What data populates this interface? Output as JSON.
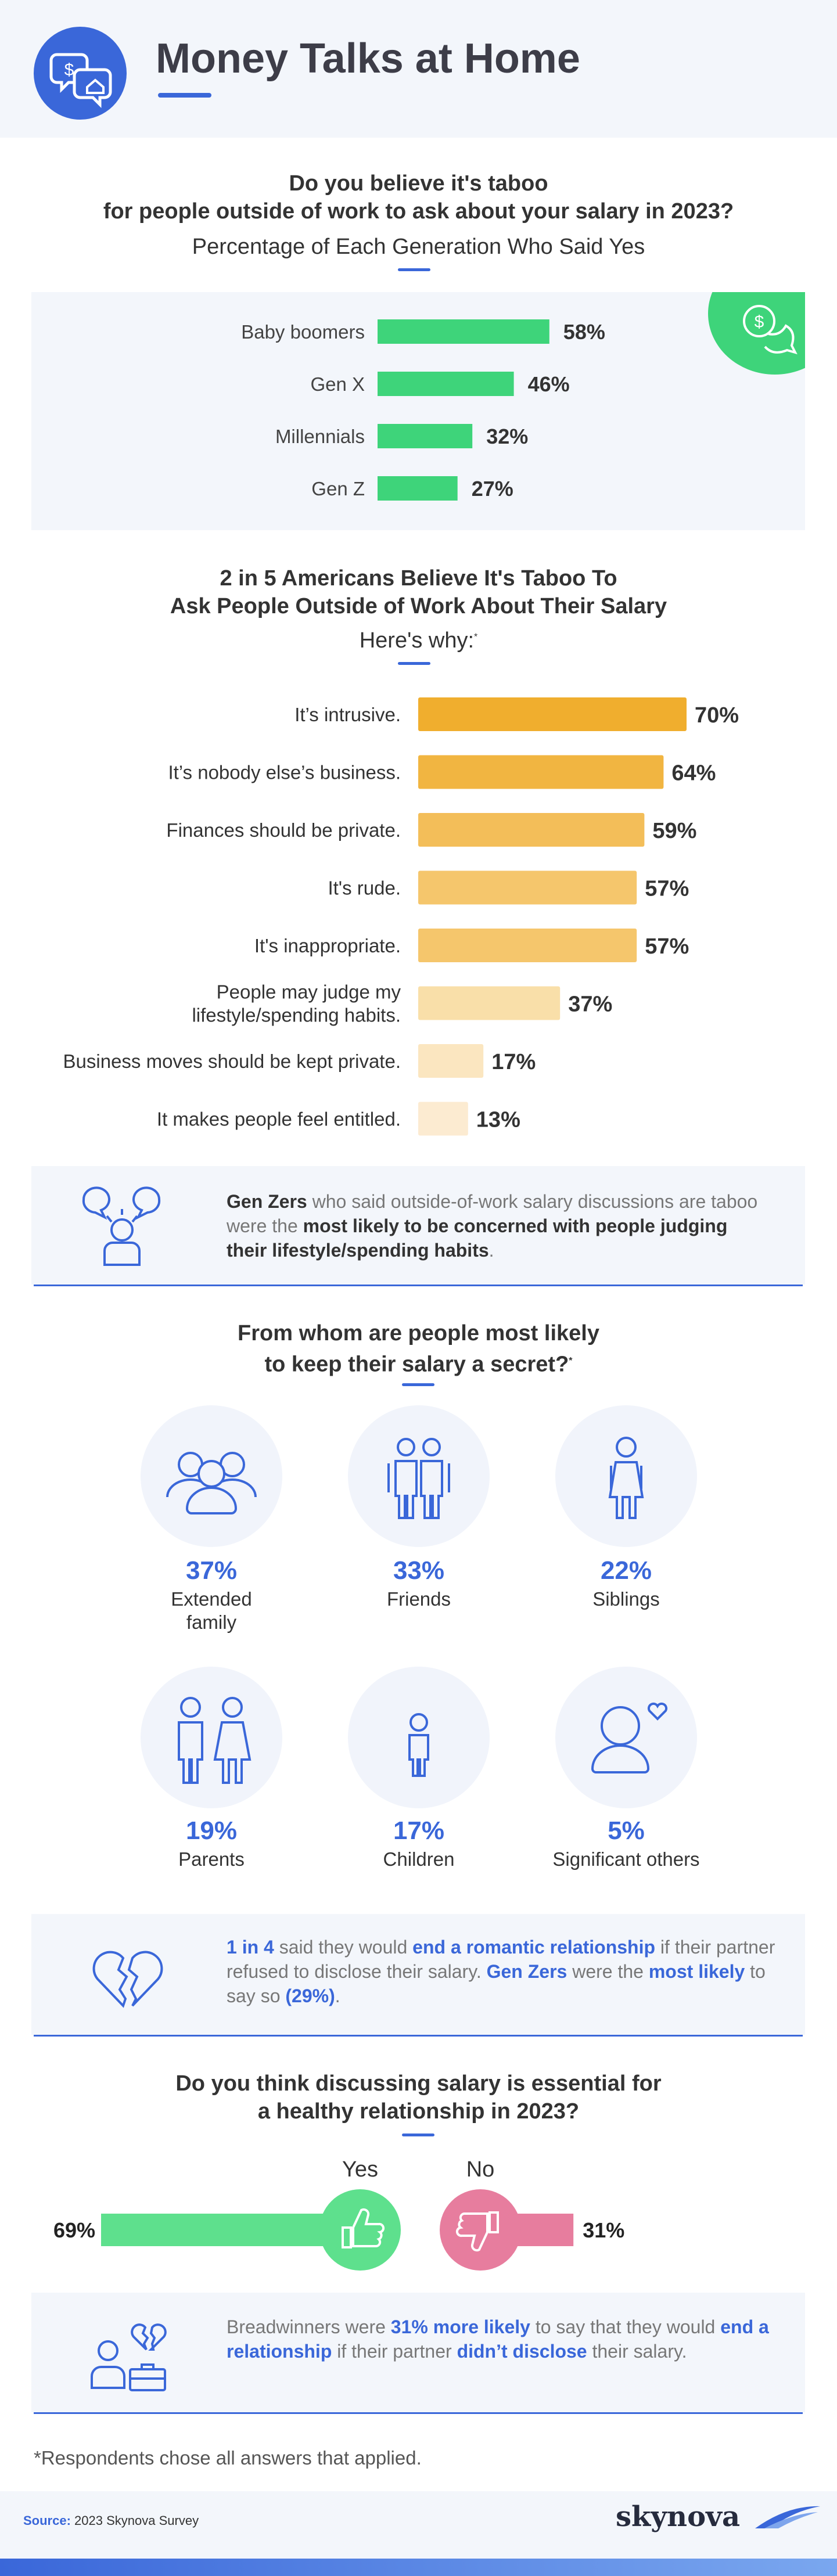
{
  "header": {
    "title": "Money Talks at Home",
    "icon": "chat-money-home-icon"
  },
  "section1": {
    "question_line1": "Do you believe it's taboo",
    "question_line2": "for people outside of work to ask about your salary in 2023?",
    "subtitle": "Percentage of Each Generation Who Said Yes",
    "bar_color": "#3ed47a",
    "items": [
      {
        "label": "Baby boomers",
        "value": 58,
        "display": "58%"
      },
      {
        "label": "Gen X",
        "value": 46,
        "display": "46%"
      },
      {
        "label": "Millennials",
        "value": 32,
        "display": "32%"
      },
      {
        "label": "Gen Z",
        "value": 27,
        "display": "27%"
      }
    ]
  },
  "section2": {
    "title_line1": "2 in 5 Americans Believe It's Taboo To",
    "title_line2": "Ask People Outside of Work About Their Salary",
    "subtitle": "Here's why:",
    "asterisk": "*",
    "items": [
      {
        "label": "It’s intrusive.",
        "value": 70,
        "display": "70%",
        "color": "#f0ae2e"
      },
      {
        "label": "It’s nobody else’s business.",
        "value": 64,
        "display": "64%",
        "color": "#f1b541"
      },
      {
        "label": "Finances should be private.",
        "value": 59,
        "display": "59%",
        "color": "#f3be59"
      },
      {
        "label": "It's rude.",
        "value": 57,
        "display": "57%",
        "color": "#f5c66c"
      },
      {
        "label": "It's inappropriate.",
        "value": 57,
        "display": "57%",
        "color": "#f5c66c"
      },
      {
        "label_line1": "People may judge my",
        "label_line2": "lifestyle/spending habits.",
        "value": 37,
        "display": "37%",
        "color": "#f9dfa9"
      },
      {
        "label": "Business moves should be kept private.",
        "value": 17,
        "display": "17%",
        "color": "#fbe6c0"
      },
      {
        "label": "It makes people feel entitled.",
        "value": 13,
        "display": "13%",
        "color": "#fcebd1"
      }
    ]
  },
  "note1": {
    "icon": "people-talking-icon",
    "bold1": "Gen Zers",
    "text1": " who said outside-of-work salary discussions are taboo were the ",
    "bold2": "most likely to be concerned with people judging their lifestyle/spending habits",
    "text2": "."
  },
  "section3": {
    "title_line1": "From whom are people most likely",
    "title_line2": "to keep their salary a secret?",
    "asterisk": "*",
    "items": [
      {
        "pct": "37%",
        "label_line1": "Extended",
        "label_line2": "family",
        "icon": "group-of-people-icon"
      },
      {
        "pct": "33%",
        "label_line1": "Friends",
        "label_line2": "",
        "icon": "friends-icon"
      },
      {
        "pct": "22%",
        "label_line1": "Siblings",
        "label_line2": "",
        "icon": "sibling-icon"
      },
      {
        "pct": "19%",
        "label_line1": "Parents",
        "label_line2": "",
        "icon": "parents-icon"
      },
      {
        "pct": "17%",
        "label_line1": "Children",
        "label_line2": "",
        "icon": "child-icon"
      },
      {
        "pct": "5%",
        "label_line1": "Significant others",
        "label_line2": "",
        "icon": "person-heart-icon"
      }
    ]
  },
  "note2": {
    "icon": "broken-heart-icon",
    "bold1": "1 in 4",
    "text1": " said they would ",
    "bold2": "end a romantic relationship",
    "text2": " if their partner refused to disclose their salary. ",
    "bold3": "Gen Zers",
    "text3": " were the ",
    "bold4": "most likely",
    "text4": " to say so ",
    "bold5": "(29%)",
    "text5": "."
  },
  "section4": {
    "title_line1": "Do you think discussing salary is essential for",
    "title_line2": "a healthy relationship in 2023?",
    "yes_label": "Yes",
    "no_label": "No",
    "yes_value": 69,
    "yes_display": "69%",
    "no_value": 31,
    "no_display": "31%",
    "yes_color": "#5ee08d",
    "no_color": "#e77d9e"
  },
  "note3": {
    "icon": "breadwinner-broken-heart-icon",
    "text1": "Breadwinners were ",
    "bold1": "31% more likely",
    "text2": " to say that they would ",
    "bold2": "end a relationship",
    "text3": " if their partner ",
    "bold3": "didn’t disclose",
    "text4": " their salary."
  },
  "footnote": "*Respondents chose all answers that applied.",
  "footer": {
    "source_label": "Source:",
    "source_text": "2023 Skynova Survey",
    "brand": "skynova"
  }
}
